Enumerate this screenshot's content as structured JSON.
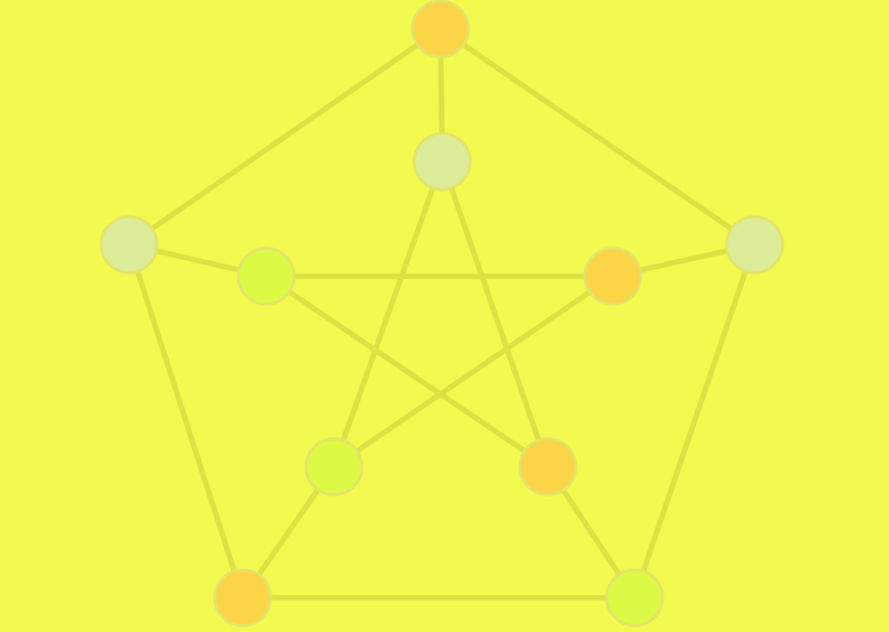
{
  "diagram": {
    "type": "graph",
    "name": "Petersen graph",
    "background": "#f2f94f",
    "edge_color": "#dde244",
    "node_border": "#e3e46a",
    "palette": {
      "orange": "#fbd447",
      "pale": "#dcec98",
      "lime": "#dcf946"
    },
    "nodes": [
      {
        "id": "outer-top",
        "color": "orange"
      },
      {
        "id": "outer-right",
        "color": "pale"
      },
      {
        "id": "outer-bottom-right",
        "color": "lime"
      },
      {
        "id": "outer-bottom-left",
        "color": "orange"
      },
      {
        "id": "outer-left",
        "color": "pale"
      },
      {
        "id": "inner-top",
        "color": "pale"
      },
      {
        "id": "inner-right",
        "color": "orange"
      },
      {
        "id": "inner-bottom-right",
        "color": "orange"
      },
      {
        "id": "inner-bottom-left",
        "color": "lime"
      },
      {
        "id": "inner-left",
        "color": "lime"
      }
    ],
    "edges": [
      [
        "outer-top",
        "outer-right"
      ],
      [
        "outer-right",
        "outer-bottom-right"
      ],
      [
        "outer-bottom-right",
        "outer-bottom-left"
      ],
      [
        "outer-bottom-left",
        "outer-left"
      ],
      [
        "outer-left",
        "outer-top"
      ],
      [
        "outer-top",
        "inner-top"
      ],
      [
        "outer-right",
        "inner-right"
      ],
      [
        "outer-bottom-right",
        "inner-bottom-right"
      ],
      [
        "outer-bottom-left",
        "inner-bottom-left"
      ],
      [
        "outer-left",
        "inner-left"
      ],
      [
        "inner-top",
        "inner-bottom-left"
      ],
      [
        "inner-top",
        "inner-bottom-right"
      ],
      [
        "inner-right",
        "inner-left"
      ],
      [
        "inner-right",
        "inner-bottom-left"
      ],
      [
        "inner-left",
        "inner-bottom-right"
      ]
    ]
  }
}
